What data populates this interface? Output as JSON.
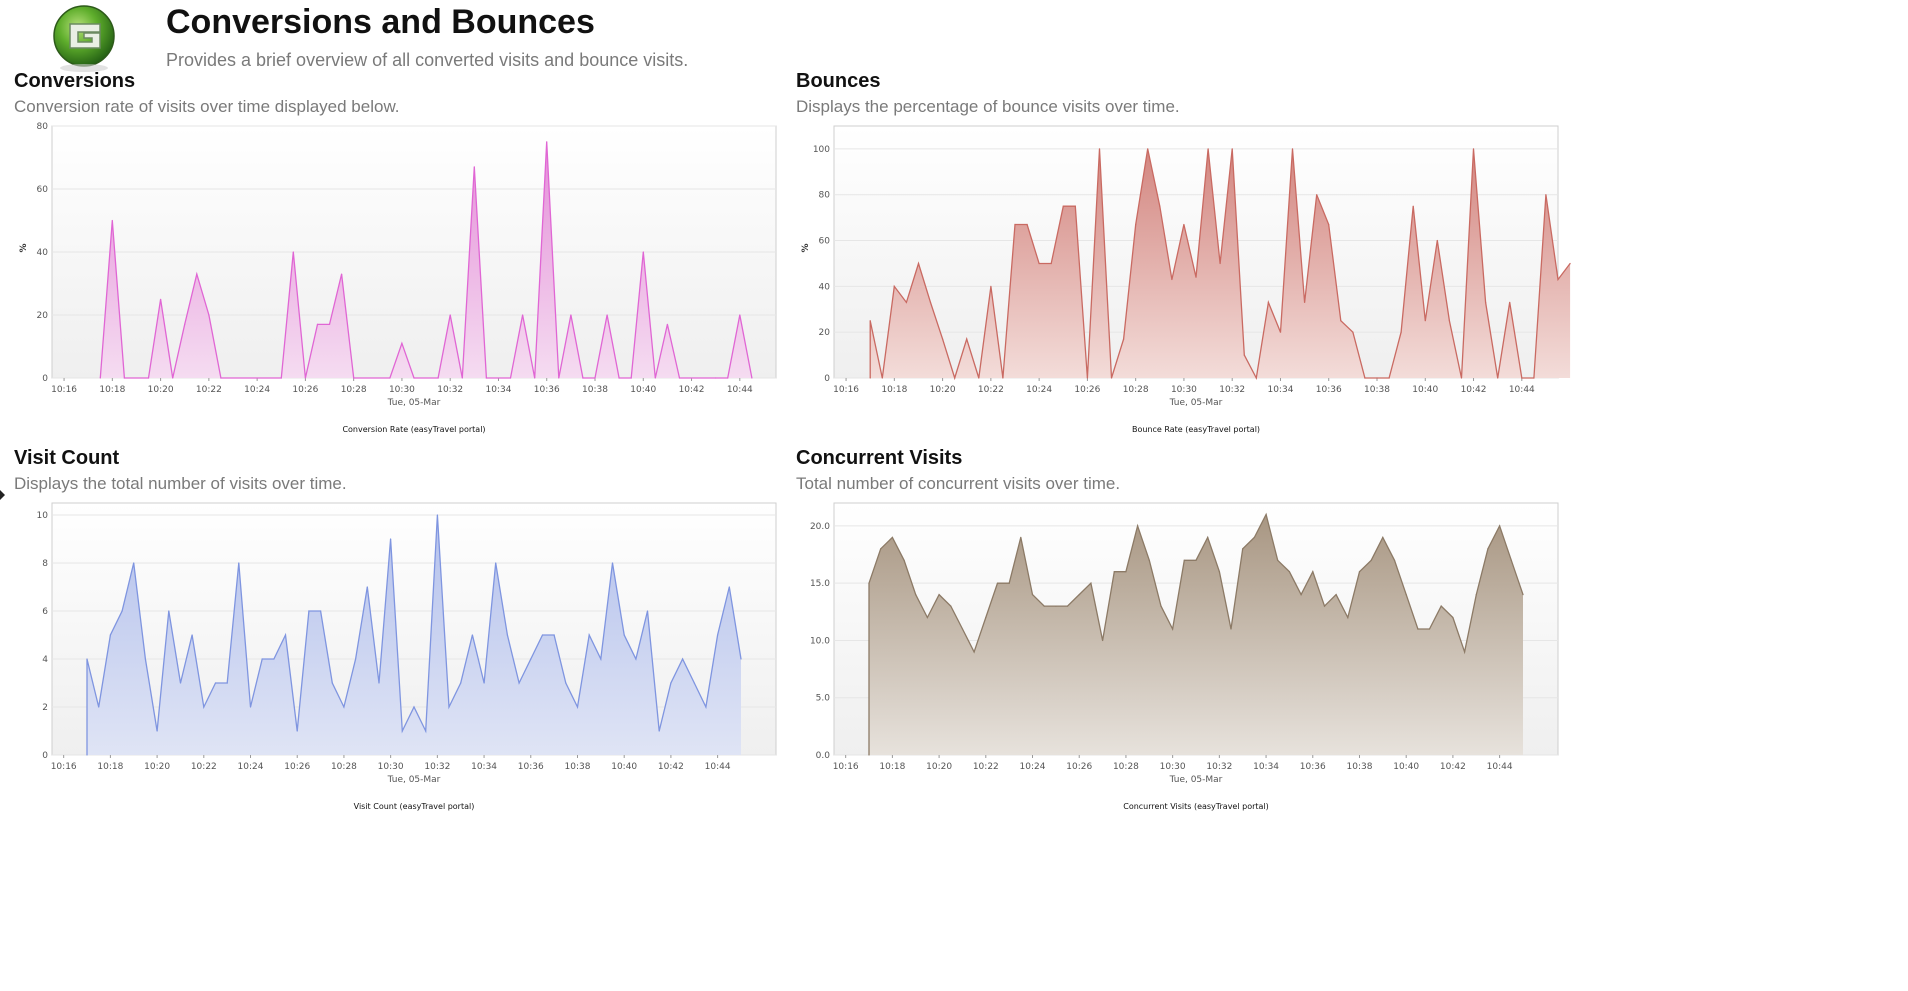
{
  "header": {
    "title": "Conversions and Bounces",
    "subtitle": "Provides a brief overview of all converted visits and bounce visits."
  },
  "panels": [
    {
      "title": "Conversions",
      "description": "Conversion rate of visits over time displayed below."
    },
    {
      "title": "Bounces",
      "description": "Displays the percentage of bounce visits over time."
    },
    {
      "title": "Visit Count",
      "description": "Displays the total number of visits over time."
    },
    {
      "title": "Concurrent Visits",
      "description": "Total number of concurrent visits over time."
    }
  ],
  "chart_data": [
    {
      "type": "area",
      "ylabel": "%",
      "xlabel": "Tue, 05-Mar",
      "legend": "Conversion Rate (easyTravel portal)",
      "ylim": [
        0,
        80
      ],
      "yticks": [
        "0",
        "20",
        "40",
        "60",
        "80"
      ],
      "xticks": [
        "10:16",
        "10:18",
        "10:20",
        "10:22",
        "10:24",
        "10:26",
        "10:28",
        "10:30",
        "10:32",
        "10:34",
        "10:36",
        "10:38",
        "10:40",
        "10:42",
        "10:44"
      ],
      "xlim": [
        15.5,
        45.5
      ],
      "color": "#e066d4",
      "fill_top": "#e48ed8",
      "fill_bottom": "#f5dcf1",
      "points": [
        [
          17.5,
          0
        ],
        [
          18,
          50
        ],
        [
          18.5,
          0
        ],
        [
          19.5,
          0
        ],
        [
          20,
          25
        ],
        [
          20.5,
          0
        ],
        [
          21,
          17
        ],
        [
          21.5,
          33
        ],
        [
          22,
          20
        ],
        [
          22.5,
          0
        ],
        [
          25,
          0
        ],
        [
          25.5,
          40
        ],
        [
          26,
          0
        ],
        [
          26.5,
          17
        ],
        [
          27,
          17
        ],
        [
          27.5,
          33
        ],
        [
          28,
          0
        ],
        [
          29.5,
          0
        ],
        [
          30,
          11
        ],
        [
          30.5,
          0
        ],
        [
          31.5,
          0
        ],
        [
          32,
          20
        ],
        [
          32.5,
          0
        ],
        [
          33,
          67
        ],
        [
          33.5,
          0
        ],
        [
          34.5,
          0
        ],
        [
          35,
          20
        ],
        [
          35.5,
          0
        ],
        [
          36,
          75
        ],
        [
          36.5,
          0
        ],
        [
          37,
          20
        ],
        [
          37.5,
          0
        ],
        [
          38,
          0
        ],
        [
          38.5,
          20
        ],
        [
          39,
          0
        ],
        [
          39.5,
          0
        ],
        [
          40,
          40
        ],
        [
          40.5,
          0
        ],
        [
          41,
          17
        ],
        [
          41.5,
          0
        ],
        [
          43,
          0
        ],
        [
          43.5,
          0
        ],
        [
          44,
          20
        ],
        [
          44.5,
          0
        ]
      ]
    },
    {
      "type": "area",
      "ylabel": "%",
      "xlabel": "Tue, 05-Mar",
      "legend": "Bounce Rate (easyTravel portal)",
      "ylim": [
        0,
        110
      ],
      "yticks": [
        "0",
        "20",
        "40",
        "60",
        "80",
        "100"
      ],
      "xticks": [
        "10:16",
        "10:18",
        "10:20",
        "10:22",
        "10:24",
        "10:26",
        "10:28",
        "10:30",
        "10:32",
        "10:34",
        "10:36",
        "10:38",
        "10:40",
        "10:42",
        "10:44"
      ],
      "xlim": [
        15.5,
        45.5
      ],
      "color": "#c96a62",
      "fill_top": "#d38680",
      "fill_bottom": "#f3dcd9",
      "points": [
        [
          17,
          0
        ],
        [
          17,
          25
        ],
        [
          17.5,
          0
        ],
        [
          18,
          40
        ],
        [
          18.5,
          33
        ],
        [
          19,
          50
        ],
        [
          19.5,
          33
        ],
        [
          20,
          17
        ],
        [
          20.5,
          0
        ],
        [
          21,
          17
        ],
        [
          21.5,
          0
        ],
        [
          22,
          40
        ],
        [
          22.5,
          0
        ],
        [
          23,
          67
        ],
        [
          23.5,
          67
        ],
        [
          24,
          50
        ],
        [
          24.5,
          50
        ],
        [
          25,
          75
        ],
        [
          25.5,
          75
        ],
        [
          26,
          0
        ],
        [
          26.5,
          100
        ],
        [
          27,
          0
        ],
        [
          27.5,
          17
        ],
        [
          28,
          67
        ],
        [
          28.5,
          100
        ],
        [
          29,
          75
        ],
        [
          29.5,
          43
        ],
        [
          30,
          67
        ],
        [
          30.5,
          44
        ],
        [
          31,
          100
        ],
        [
          31.5,
          50
        ],
        [
          32,
          100
        ],
        [
          32.5,
          10
        ],
        [
          33,
          0
        ],
        [
          33.5,
          33
        ],
        [
          34,
          20
        ],
        [
          34.5,
          100
        ],
        [
          35,
          33
        ],
        [
          35.5,
          80
        ],
        [
          36,
          67
        ],
        [
          36.5,
          25
        ],
        [
          37,
          20
        ],
        [
          37.5,
          0
        ],
        [
          38,
          0
        ],
        [
          38.5,
          0
        ],
        [
          39,
          20
        ],
        [
          39.5,
          75
        ],
        [
          40,
          25
        ],
        [
          40.5,
          60
        ],
        [
          41,
          25
        ],
        [
          41.5,
          0
        ],
        [
          42,
          100
        ],
        [
          42.5,
          33
        ],
        [
          43,
          0
        ],
        [
          43.5,
          33
        ],
        [
          44,
          0
        ],
        [
          44.5,
          0
        ],
        [
          45,
          80
        ],
        [
          45.5,
          43
        ],
        [
          46,
          50
        ]
      ]
    },
    {
      "type": "area",
      "ylabel": "",
      "xlabel": "Tue, 05-Mar",
      "legend": "Visit Count (easyTravel portal)",
      "ylim": [
        0,
        10.5
      ],
      "yticks": [
        "0",
        "2",
        "4",
        "6",
        "8",
        "10"
      ],
      "xticks": [
        "10:16",
        "10:18",
        "10:20",
        "10:22",
        "10:24",
        "10:26",
        "10:28",
        "10:30",
        "10:32",
        "10:34",
        "10:36",
        "10:38",
        "10:40",
        "10:42",
        "10:44"
      ],
      "xlim": [
        15.5,
        46.5
      ],
      "color": "#7f95e0",
      "fill_top": "#b4c1ec",
      "fill_bottom": "#dfe4f5",
      "points": [
        [
          17,
          0
        ],
        [
          17,
          4
        ],
        [
          17.5,
          2
        ],
        [
          18,
          5
        ],
        [
          18.5,
          6
        ],
        [
          19,
          8
        ],
        [
          19.5,
          4
        ],
        [
          20,
          1
        ],
        [
          20.5,
          6
        ],
        [
          21,
          3
        ],
        [
          21.5,
          5
        ],
        [
          22,
          2
        ],
        [
          22.5,
          3
        ],
        [
          23,
          3
        ],
        [
          23.5,
          8
        ],
        [
          24,
          2
        ],
        [
          24.5,
          4
        ],
        [
          25,
          4
        ],
        [
          25.5,
          5
        ],
        [
          26,
          1
        ],
        [
          26.5,
          6
        ],
        [
          27,
          6
        ],
        [
          27.5,
          3
        ],
        [
          28,
          2
        ],
        [
          28.5,
          4
        ],
        [
          29,
          7
        ],
        [
          29.5,
          3
        ],
        [
          30,
          9
        ],
        [
          30.5,
          1
        ],
        [
          31,
          2
        ],
        [
          31.5,
          1
        ],
        [
          32,
          10
        ],
        [
          32.5,
          2
        ],
        [
          33,
          3
        ],
        [
          33.5,
          5
        ],
        [
          34,
          3
        ],
        [
          34.5,
          8
        ],
        [
          35,
          5
        ],
        [
          35.5,
          3
        ],
        [
          36,
          4
        ],
        [
          36.5,
          5
        ],
        [
          37,
          5
        ],
        [
          37.5,
          3
        ],
        [
          38,
          2
        ],
        [
          38.5,
          5
        ],
        [
          39,
          4
        ],
        [
          39.5,
          8
        ],
        [
          40,
          5
        ],
        [
          40.5,
          4
        ],
        [
          41,
          6
        ],
        [
          41.5,
          1
        ],
        [
          42,
          3
        ],
        [
          42.5,
          4
        ],
        [
          43,
          3
        ],
        [
          43.5,
          2
        ],
        [
          44,
          5
        ],
        [
          44.5,
          7
        ],
        [
          45,
          4
        ]
      ]
    },
    {
      "type": "area",
      "ylabel": "",
      "xlabel": "Tue, 05-Mar",
      "legend": "Concurrent Visits (easyTravel portal)",
      "ylim": [
        0,
        22
      ],
      "yticks": [
        "0.0",
        "5.0",
        "10.0",
        "15.0",
        "20.0"
      ],
      "xticks": [
        "10:16",
        "10:18",
        "10:20",
        "10:22",
        "10:24",
        "10:26",
        "10:28",
        "10:30",
        "10:32",
        "10:34",
        "10:36",
        "10:38",
        "10:40",
        "10:42",
        "10:44"
      ],
      "xlim": [
        15.5,
        46.5
      ],
      "color": "#8c7a66",
      "fill_top": "#a89682",
      "fill_bottom": "#e7e2dc",
      "points": [
        [
          17,
          0
        ],
        [
          17,
          15
        ],
        [
          17.5,
          18
        ],
        [
          18,
          19
        ],
        [
          18.5,
          17
        ],
        [
          19,
          14
        ],
        [
          19.5,
          12
        ],
        [
          20,
          14
        ],
        [
          20.5,
          13
        ],
        [
          21,
          11
        ],
        [
          21.5,
          9
        ],
        [
          22,
          12
        ],
        [
          22.5,
          15
        ],
        [
          23,
          15
        ],
        [
          23.5,
          19
        ],
        [
          24,
          14
        ],
        [
          24.5,
          13
        ],
        [
          25,
          13
        ],
        [
          25.5,
          13
        ],
        [
          26,
          14
        ],
        [
          26.5,
          15
        ],
        [
          27,
          10
        ],
        [
          27.5,
          16
        ],
        [
          28,
          16
        ],
        [
          28.5,
          20
        ],
        [
          29,
          17
        ],
        [
          29.5,
          13
        ],
        [
          30,
          11
        ],
        [
          30.5,
          17
        ],
        [
          31,
          17
        ],
        [
          31.5,
          19
        ],
        [
          32,
          16
        ],
        [
          32.5,
          11
        ],
        [
          33,
          18
        ],
        [
          33.5,
          19
        ],
        [
          34,
          21
        ],
        [
          34.5,
          17
        ],
        [
          35,
          16
        ],
        [
          35.5,
          14
        ],
        [
          36,
          16
        ],
        [
          36.5,
          13
        ],
        [
          37,
          14
        ],
        [
          37.5,
          12
        ],
        [
          38,
          16
        ],
        [
          38.5,
          17
        ],
        [
          39,
          19
        ],
        [
          39.5,
          17
        ],
        [
          40,
          14
        ],
        [
          40.5,
          11
        ],
        [
          41,
          11
        ],
        [
          41.5,
          13
        ],
        [
          42,
          12
        ],
        [
          42.5,
          9
        ],
        [
          43,
          14
        ],
        [
          43.5,
          18
        ],
        [
          44,
          20
        ],
        [
          44.5,
          17
        ],
        [
          45,
          14
        ]
      ]
    }
  ]
}
